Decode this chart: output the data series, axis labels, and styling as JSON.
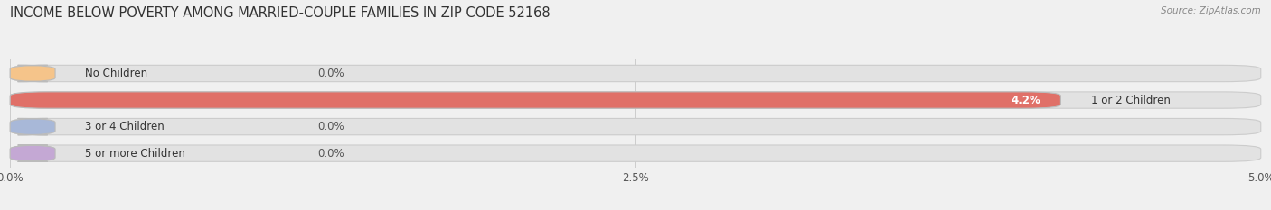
{
  "title": "INCOME BELOW POVERTY AMONG MARRIED-COUPLE FAMILIES IN ZIP CODE 52168",
  "source": "Source: ZipAtlas.com",
  "categories": [
    "No Children",
    "1 or 2 Children",
    "3 or 4 Children",
    "5 or more Children"
  ],
  "values": [
    0.0,
    4.2,
    0.0,
    0.0
  ],
  "bar_colors": [
    "#f5c48a",
    "#e07068",
    "#a8b8d8",
    "#c4a8d4"
  ],
  "background_color": "#f0f0f0",
  "bar_bg_color": "#e2e2e2",
  "xlim": [
    0,
    5.0
  ],
  "xticks": [
    0.0,
    2.5,
    5.0
  ],
  "xticklabels": [
    "0.0%",
    "2.5%",
    "5.0%"
  ],
  "title_fontsize": 10.5,
  "label_fontsize": 8.5,
  "tick_fontsize": 8.5,
  "bar_height": 0.62,
  "bar_gap": 1.0
}
